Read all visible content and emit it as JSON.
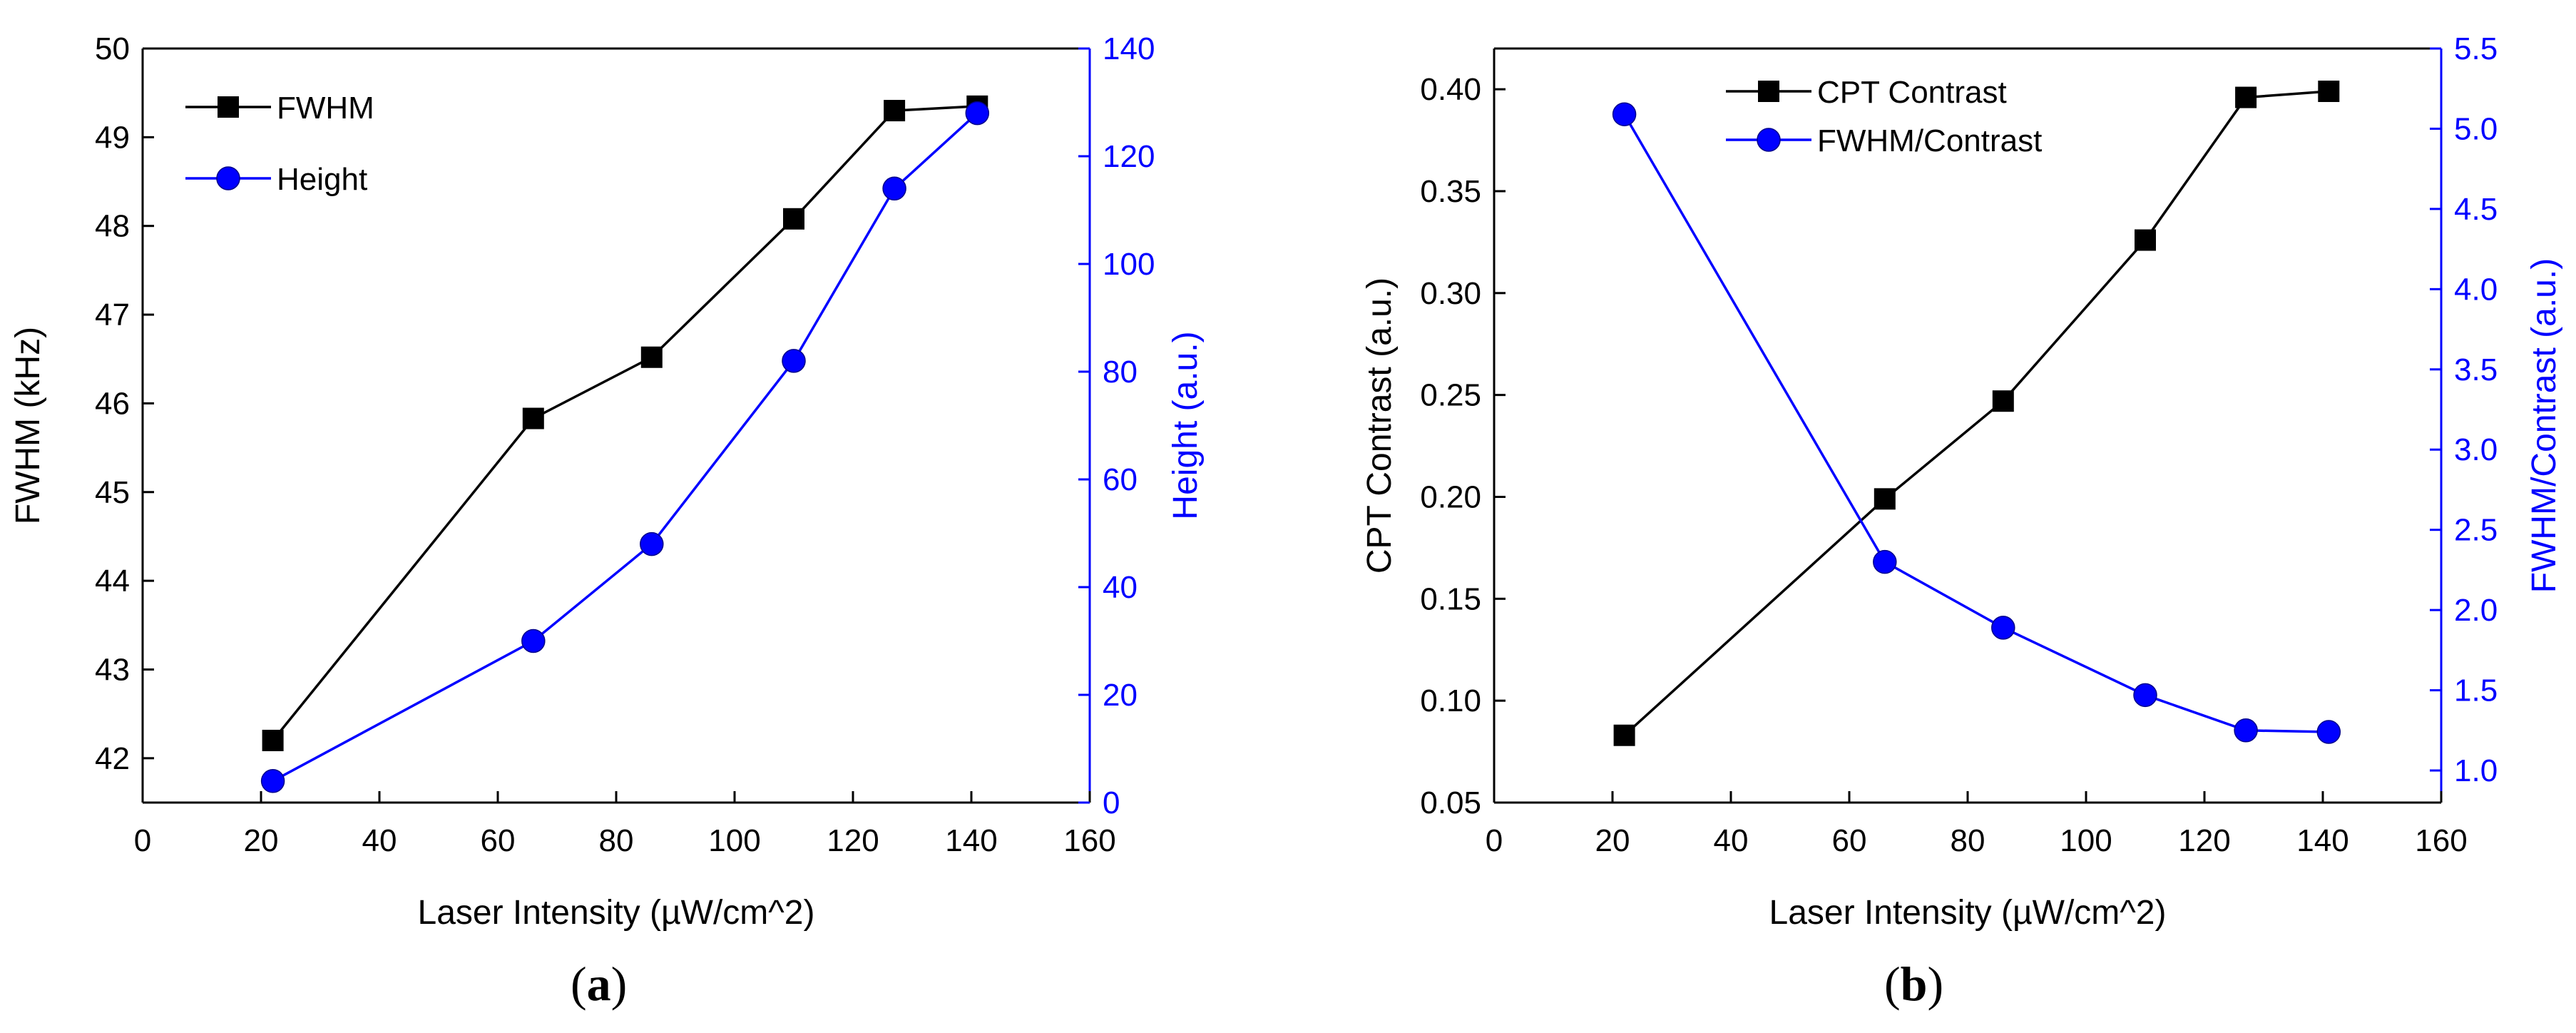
{
  "chart_data": [
    {
      "type": "line",
      "panel": "a",
      "xlabel": "Laser Intensity (µW/cm^2)",
      "xlim": [
        0,
        160
      ],
      "xticks": [
        0,
        20,
        40,
        60,
        80,
        100,
        120,
        140,
        160
      ],
      "ylabel": "FWHM (kHz)",
      "ylim": [
        41.5,
        50
      ],
      "yticks": [
        42,
        43,
        44,
        45,
        46,
        47,
        48,
        49,
        50
      ],
      "y2label": "Height (a.u.)",
      "y2lim": [
        0,
        140
      ],
      "y2ticks": [
        0,
        20,
        40,
        60,
        80,
        100,
        120,
        140
      ],
      "legend_position": "top-left",
      "series": [
        {
          "name": "FWHM",
          "axis": "left",
          "color": "#000000",
          "marker": "square",
          "x": [
            22,
            66,
            86,
            110,
            127,
            141
          ],
          "values": [
            42.2,
            45.83,
            46.52,
            48.08,
            49.3,
            49.35
          ]
        },
        {
          "name": "Height",
          "axis": "right",
          "color": "#0000ff",
          "marker": "circle",
          "x": [
            22,
            66,
            86,
            110,
            127,
            141
          ],
          "values": [
            4,
            30,
            48,
            82,
            114,
            128
          ]
        }
      ]
    },
    {
      "type": "line",
      "panel": "b",
      "xlabel": "Laser Intensity (µW/cm^2)",
      "xlim": [
        0,
        160
      ],
      "xticks": [
        0,
        20,
        40,
        60,
        80,
        100,
        120,
        140,
        160
      ],
      "ylabel": "CPT Contrast (a.u.)",
      "ylim": [
        0.05,
        0.42
      ],
      "yticks": [
        0.05,
        0.1,
        0.15,
        0.2,
        0.25,
        0.3,
        0.35,
        0.4
      ],
      "y2label": "FWHM/Contrast (a.u.)",
      "y2lim": [
        0.8,
        5.5
      ],
      "y2ticks": [
        1.0,
        1.5,
        2.0,
        2.5,
        3.0,
        3.5,
        4.0,
        4.5,
        5.0,
        5.5
      ],
      "legend_position": "top-center",
      "series": [
        {
          "name": "CPT Contrast",
          "axis": "left",
          "color": "#000000",
          "marker": "square",
          "x": [
            22,
            66,
            86,
            110,
            127,
            141
          ],
          "values": [
            0.083,
            0.199,
            0.247,
            0.326,
            0.396,
            0.399
          ]
        },
        {
          "name": "FWHM/Contrast",
          "axis": "right",
          "color": "#0000ff",
          "marker": "circle",
          "x": [
            22,
            66,
            86,
            110,
            127,
            141
          ],
          "values": [
            5.09,
            2.3,
            1.89,
            1.47,
            1.25,
            1.24
          ]
        }
      ]
    }
  ],
  "captions": [
    {
      "open": "(",
      "letter": "a",
      "close": ")"
    },
    {
      "open": "(",
      "letter": "b",
      "close": ")"
    }
  ]
}
